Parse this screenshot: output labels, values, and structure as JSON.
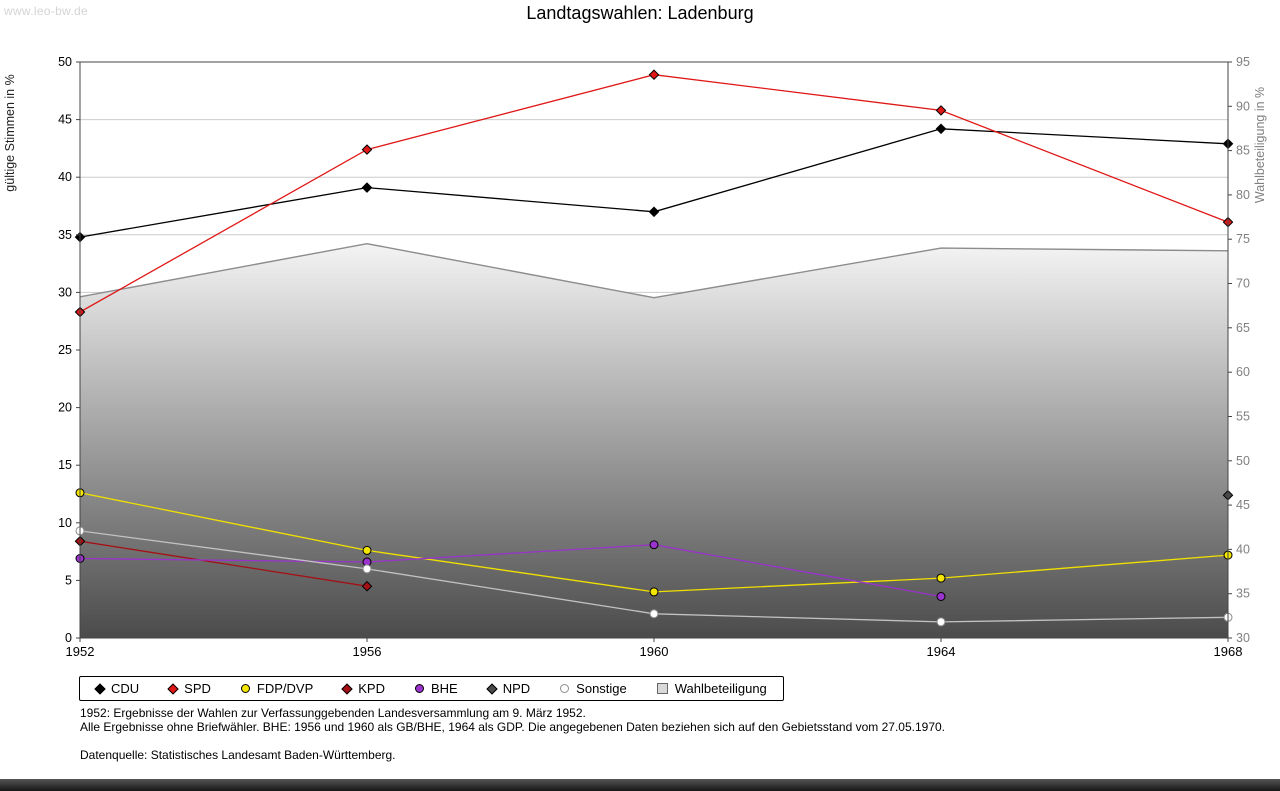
{
  "page": {
    "watermark": "www.leo-bw.de",
    "title": "Landtagswahlen: Ladenburg"
  },
  "chart_data": {
    "type": "line",
    "title": "Landtagswahlen: Ladenburg",
    "x": [
      "1952",
      "1956",
      "1960",
      "1964",
      "1968"
    ],
    "left_axis": {
      "label": "gültige Stimmen in %",
      "min": 0,
      "max": 50,
      "tick_step": 5
    },
    "right_axis": {
      "label": "Wahlbeteiligung in %",
      "min": 30,
      "max": 95,
      "tick_step": 5
    },
    "grid": true,
    "legend_position": "bottom",
    "colors": {
      "grid": "#cccccc",
      "plot_border": "#444444",
      "right_axis_text": "#808080",
      "left_axis_text": "#000000"
    },
    "series": [
      {
        "name": "CDU",
        "axis": "left",
        "render": "line",
        "color": "#000000",
        "marker": "diamond",
        "marker_fill": "#000000",
        "marker_stroke": "#000000",
        "values": [
          34.8,
          39.1,
          37.0,
          44.2,
          42.9
        ]
      },
      {
        "name": "SPD",
        "axis": "left",
        "render": "line",
        "color": "#e01818",
        "marker": "diamond",
        "marker_fill": "#e01818",
        "marker_stroke": "#000000",
        "values": [
          28.3,
          42.4,
          48.9,
          45.8,
          36.1
        ]
      },
      {
        "name": "FDP/DVP",
        "axis": "left",
        "render": "line",
        "color": "#f0e000",
        "marker": "circle",
        "marker_fill": "#f5e600",
        "marker_stroke": "#000000",
        "values": [
          12.6,
          7.6,
          4.0,
          5.2,
          7.2
        ]
      },
      {
        "name": "KPD",
        "axis": "left",
        "render": "line",
        "color": "#a51015",
        "marker": "diamond",
        "marker_fill": "#a51015",
        "marker_stroke": "#000000",
        "values": [
          8.4,
          4.5,
          null,
          null,
          null
        ]
      },
      {
        "name": "BHE",
        "axis": "left",
        "render": "line",
        "color": "#9933cc",
        "marker": "circle",
        "marker_fill": "#9933cc",
        "marker_stroke": "#000000",
        "values": [
          6.9,
          6.6,
          8.1,
          3.6,
          null
        ]
      },
      {
        "name": "NPD",
        "axis": "left",
        "render": "line",
        "color": "#4a4a4a",
        "marker": "diamond",
        "marker_fill": "#4a4a4a",
        "marker_stroke": "#000000",
        "values": [
          null,
          null,
          null,
          null,
          12.4
        ]
      },
      {
        "name": "Sonstige",
        "axis": "left",
        "render": "line",
        "color": "#c2c2c2",
        "marker": "circle",
        "marker_fill": "#ffffff",
        "marker_stroke": "#8c8c8c",
        "values": [
          9.3,
          6.0,
          2.1,
          1.4,
          1.8
        ]
      },
      {
        "name": "Wahlbeteiligung",
        "axis": "right",
        "render": "area",
        "color": "#8c8c8c",
        "fill_top": "#f4f4f4",
        "fill_bottom": "#4b4b4b",
        "marker": "square",
        "values": [
          68.5,
          74.5,
          68.4,
          74.0,
          73.7
        ]
      }
    ]
  },
  "footnotes": [
    "1952: Ergebnisse der Wahlen zur Verfassunggebenden Landesversammlung am 9. März 1952.",
    "Alle Ergebnisse ohne Briefwähler. BHE: 1956 und 1960 als GB/BHE, 1964 als GDP. Die angegebenen Daten beziehen sich auf den Gebietsstand vom 27.05.1970.",
    "Datenquelle: Statistisches Landesamt Baden-Württemberg."
  ]
}
